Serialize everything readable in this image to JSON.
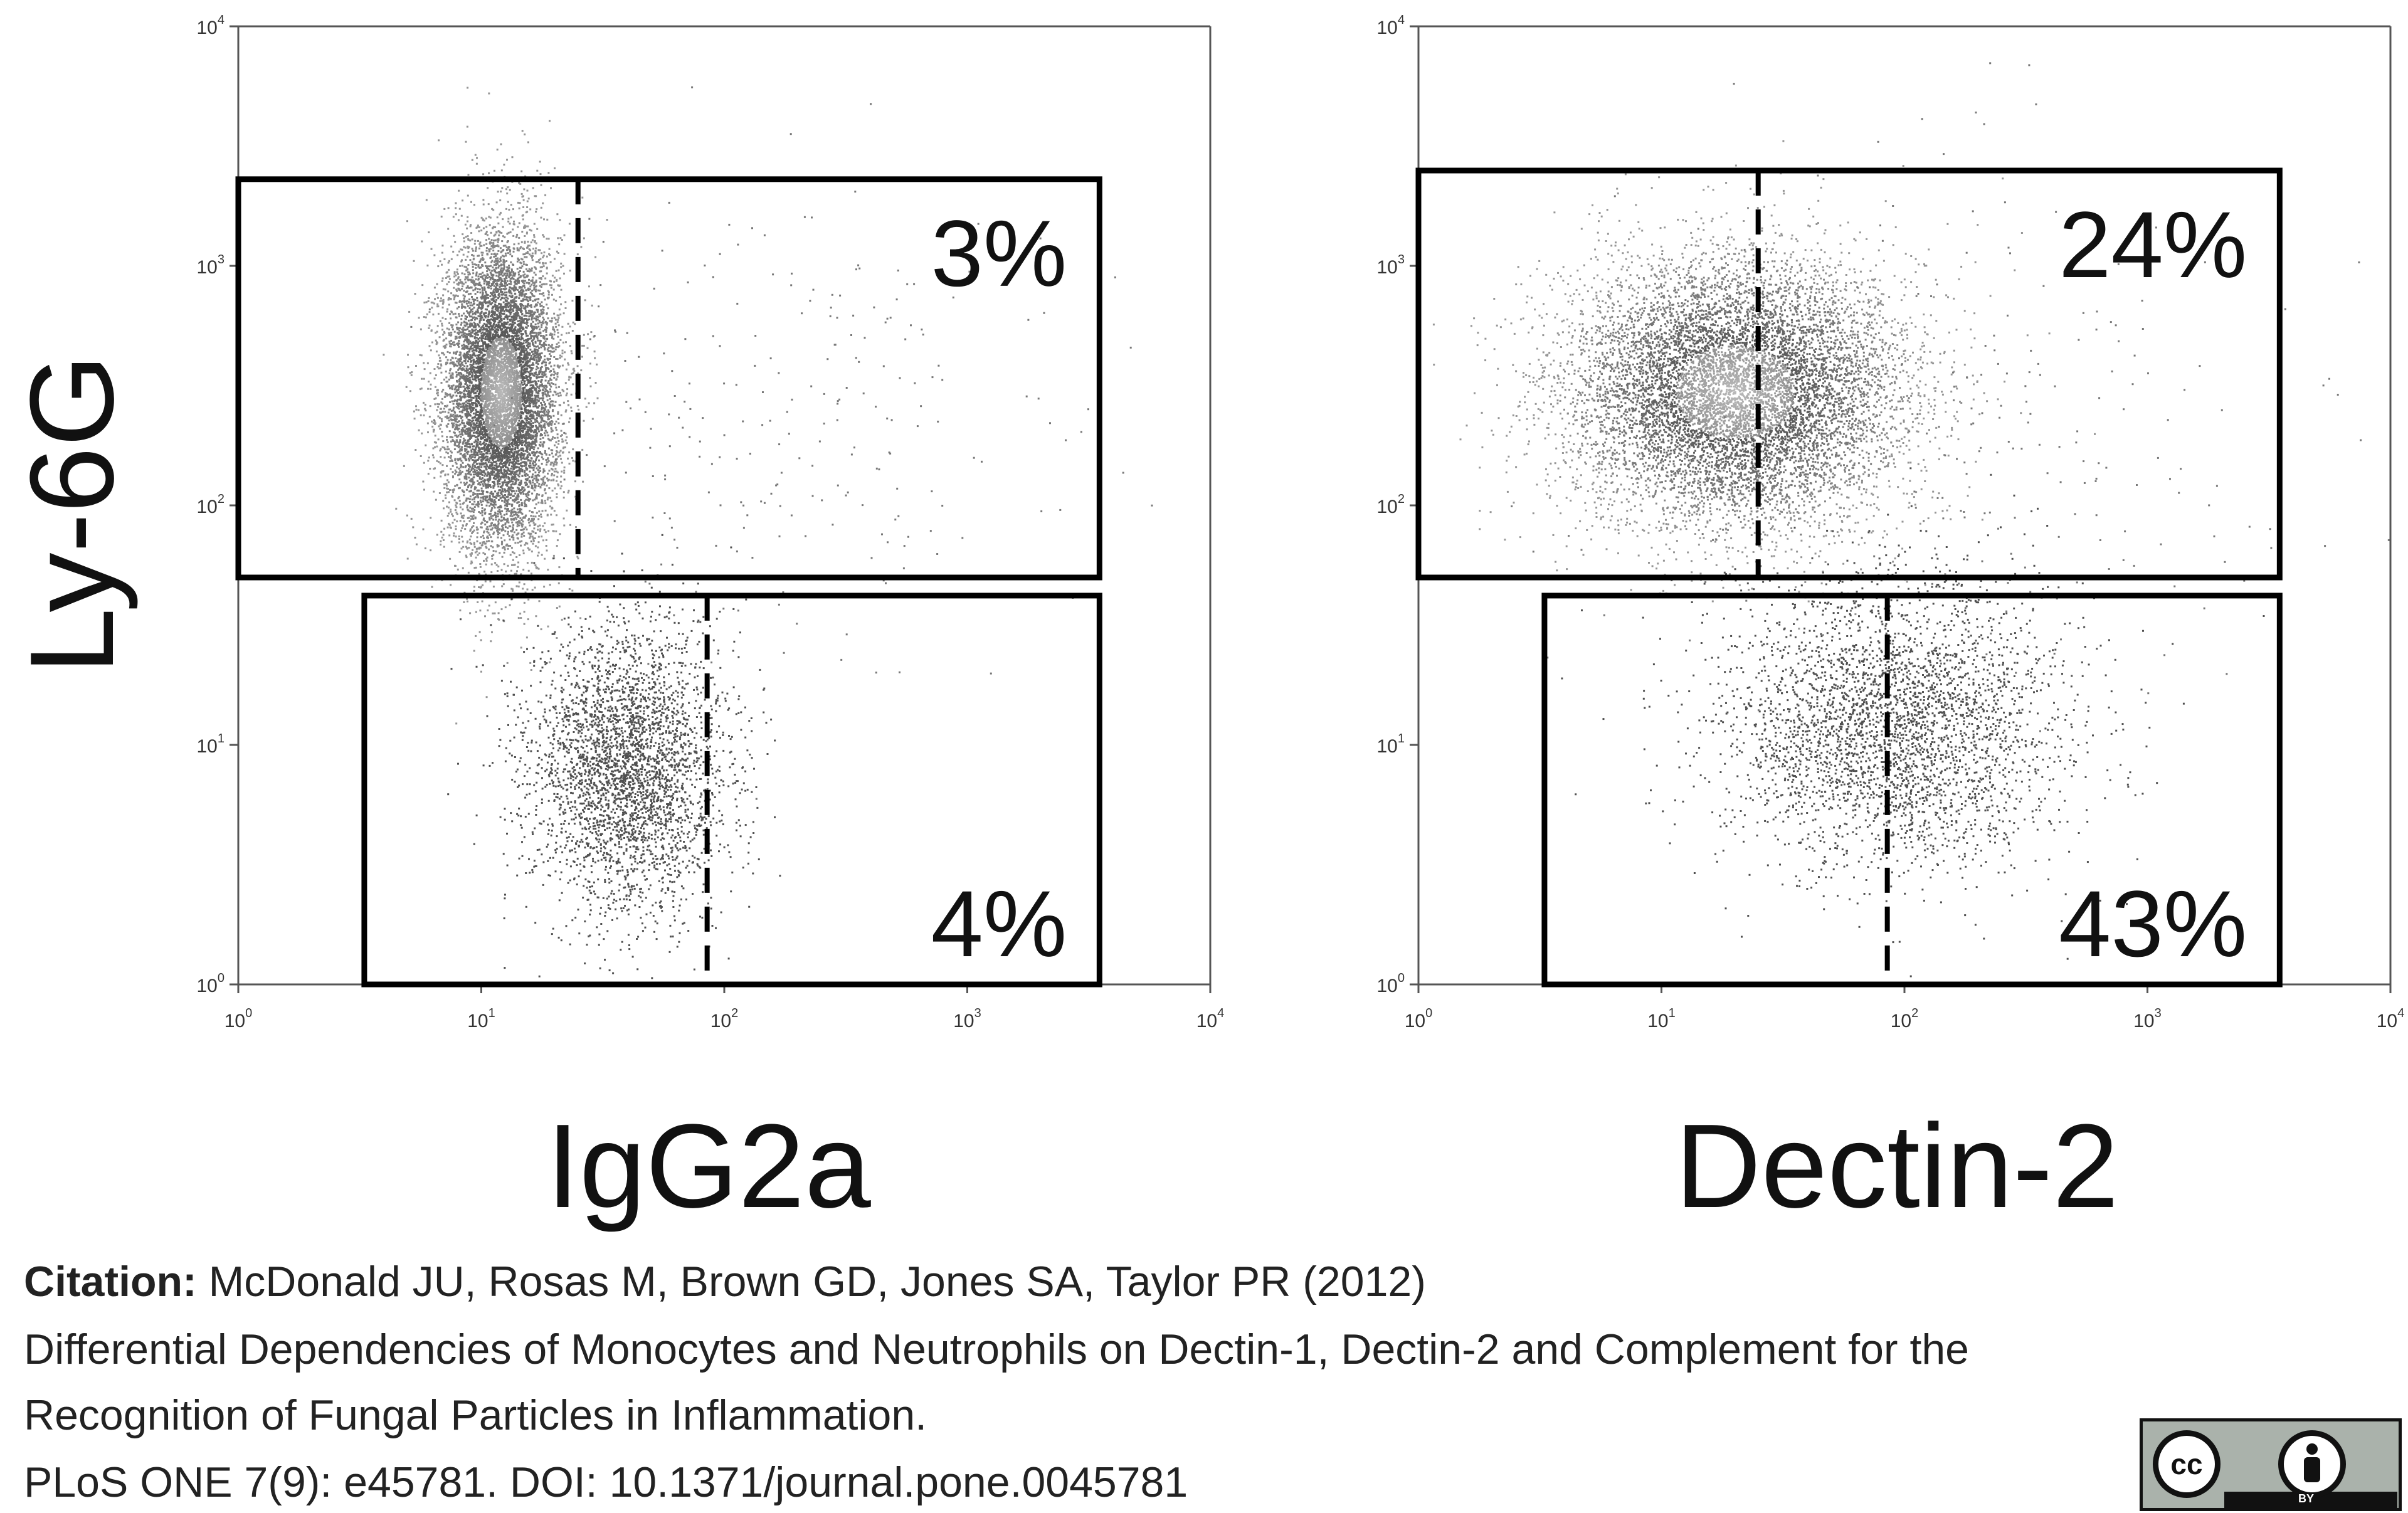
{
  "chart_data": [
    {
      "type": "scatter",
      "xlabel": "IgG2a",
      "ylabel": "Ly-6G",
      "xscale": "log",
      "yscale": "log",
      "xlim": [
        1,
        10000
      ],
      "ylim": [
        1,
        10000
      ],
      "x_ticks": [
        1,
        10,
        100,
        1000,
        10000
      ],
      "y_ticks": [
        1,
        10,
        100,
        1000,
        10000
      ],
      "tick_base": "10",
      "tick_exponents": [
        "0",
        "1",
        "2",
        "3",
        "4"
      ],
      "grid": false,
      "gates": [
        {
          "label": "3%",
          "x_range": [
            1,
            3500
          ],
          "y_range": [
            50,
            2300
          ],
          "divider_x": 25
        },
        {
          "label": "4%",
          "x_range": [
            3.3,
            3500
          ],
          "y_range": [
            1,
            42
          ],
          "divider_x": 85
        }
      ],
      "populations": [
        {
          "center": [
            12,
            300
          ],
          "spread_log": [
            0.12,
            0.33
          ],
          "density": "high"
        },
        {
          "center": [
            40,
            8
          ],
          "spread_log": [
            0.2,
            0.3
          ],
          "density": "medium"
        },
        {
          "center": [
            200,
            200
          ],
          "spread_log": [
            0.6,
            0.5
          ],
          "density": "sparse"
        }
      ]
    },
    {
      "type": "scatter",
      "xlabel": "Dectin-2",
      "ylabel": "",
      "xscale": "log",
      "yscale": "log",
      "xlim": [
        1,
        10000
      ],
      "ylim": [
        1,
        10000
      ],
      "x_ticks": [
        1,
        10,
        100,
        1000,
        10000
      ],
      "y_ticks": [
        1,
        10,
        100,
        1000,
        10000
      ],
      "tick_base": "10",
      "tick_exponents": [
        "0",
        "1",
        "2",
        "3",
        "4"
      ],
      "grid": false,
      "gates": [
        {
          "label": "24%",
          "x_range": [
            1,
            3500
          ],
          "y_range": [
            50,
            2500
          ],
          "divider_x": 25
        },
        {
          "label": "43%",
          "x_range": [
            3.3,
            3500
          ],
          "y_range": [
            1,
            42
          ],
          "divider_x": 85
        }
      ],
      "populations": [
        {
          "center": [
            20,
            300
          ],
          "spread_log": [
            0.35,
            0.28
          ],
          "density": "high"
        },
        {
          "center": [
            90,
            12
          ],
          "spread_log": [
            0.35,
            0.3
          ],
          "density": "medium"
        },
        {
          "center": [
            200,
            200
          ],
          "spread_log": [
            0.7,
            0.6
          ],
          "density": "sparse"
        }
      ]
    }
  ],
  "citation": {
    "label": "Citation:",
    "authors": "McDonald JU, Rosas M, Brown GD, Jones SA, Taylor PR (2012)",
    "title_line1": "Differential Dependencies of Monocytes and Neutrophils on Dectin-1, Dectin-2 and Complement for the",
    "title_line2": "Recognition of Fungal Particles in Inflammation.",
    "journal": "PLoS ONE 7(9): e45781. DOI: 10.1371/journal.pone.0045781"
  },
  "license_badge": {
    "left_text": "cc",
    "right_text": "BY"
  }
}
